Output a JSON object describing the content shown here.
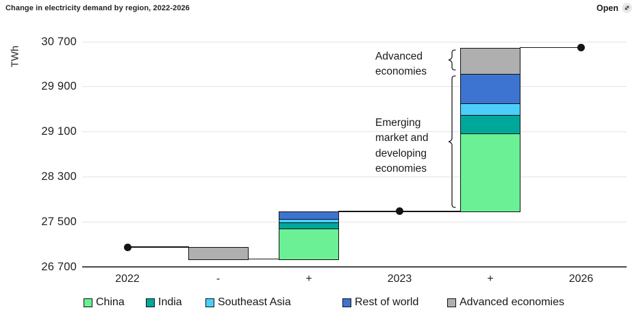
{
  "header": {
    "title": "Change in electricity demand by region, 2022-2026",
    "open_button": {
      "label": "Open",
      "icon": "expand-arrow-icon"
    }
  },
  "chart_data": {
    "type": "bar",
    "subtype": "waterfall-stacked-bar",
    "title": "Change in electricity demand by region, 2022-2026",
    "unit": "TWh",
    "ylabel": "TWh",
    "xlabel": "",
    "grid": true,
    "legend_position": "bottom",
    "ylim": [
      26700,
      30700
    ],
    "ytick_step": 800,
    "yticks": [
      {
        "value": 30700,
        "label": "30 700"
      },
      {
        "value": 29900,
        "label": "29 900"
      },
      {
        "value": 29100,
        "label": "29 100"
      },
      {
        "value": 28300,
        "label": "28 300"
      },
      {
        "value": 27500,
        "label": "27 500"
      },
      {
        "value": 26700,
        "label": "26 700"
      }
    ],
    "categories": [
      "2022",
      "-",
      "+",
      "2023",
      "+",
      "2026"
    ],
    "levels_twh": {
      "2022": 27050,
      "2023": 27685,
      "2026": 30595
    },
    "columns": [
      {
        "x": "2022",
        "type": "level",
        "value": 27050
      },
      {
        "x": "-",
        "type": "bar",
        "start": 27050,
        "change": "decrease",
        "segments": [
          {
            "name": "Advanced economies",
            "value": -210
          }
        ]
      },
      {
        "x": "+",
        "type": "bar",
        "start": 26840,
        "change": "increase",
        "segments": [
          {
            "name": "China",
            "value": 545
          },
          {
            "name": "India",
            "value": 110
          },
          {
            "name": "Southeast Asia",
            "value": 60
          },
          {
            "name": "Rest of world",
            "value": 130
          }
        ]
      },
      {
        "x": "2023",
        "type": "level",
        "value": 27685
      },
      {
        "x": "+",
        "type": "bar",
        "start": 27685,
        "change": "increase",
        "segments": [
          {
            "name": "China",
            "value": 1390
          },
          {
            "name": "India",
            "value": 330
          },
          {
            "name": "Southeast Asia",
            "value": 205
          },
          {
            "name": "Rest of world",
            "value": 520
          },
          {
            "name": "Advanced economies",
            "value": 465
          }
        ]
      },
      {
        "x": "2026",
        "type": "level",
        "value": 30595
      }
    ],
    "series_colors": {
      "China": "#6BF095",
      "India": "#00A79B",
      "Southeast Asia": "#4CCEFA",
      "Rest of world": "#3E74D1",
      "Advanced economies": "#AFAFAF"
    },
    "annotations": [
      {
        "id": "advanced-economies",
        "lines": [
          "Advanced",
          "economies"
        ],
        "brace_value_range": [
          30130,
          30595
        ]
      },
      {
        "id": "emerging-market-and-developing-economies",
        "lines": [
          "Emerging",
          "market and",
          "developing",
          "economies"
        ],
        "brace_value_range": [
          27685,
          30130
        ]
      }
    ],
    "legend": [
      {
        "label": "China",
        "color": "#6BF095"
      },
      {
        "label": "India",
        "color": "#00A79B"
      },
      {
        "label": "Southeast Asia",
        "color": "#4CCEFA"
      },
      {
        "label": "Rest of world",
        "color": "#3E74D1"
      },
      {
        "label": "Advanced economies",
        "color": "#AFAFAF"
      }
    ],
    "line_color": "#141414",
    "axis_color": "#4a4a4a"
  }
}
